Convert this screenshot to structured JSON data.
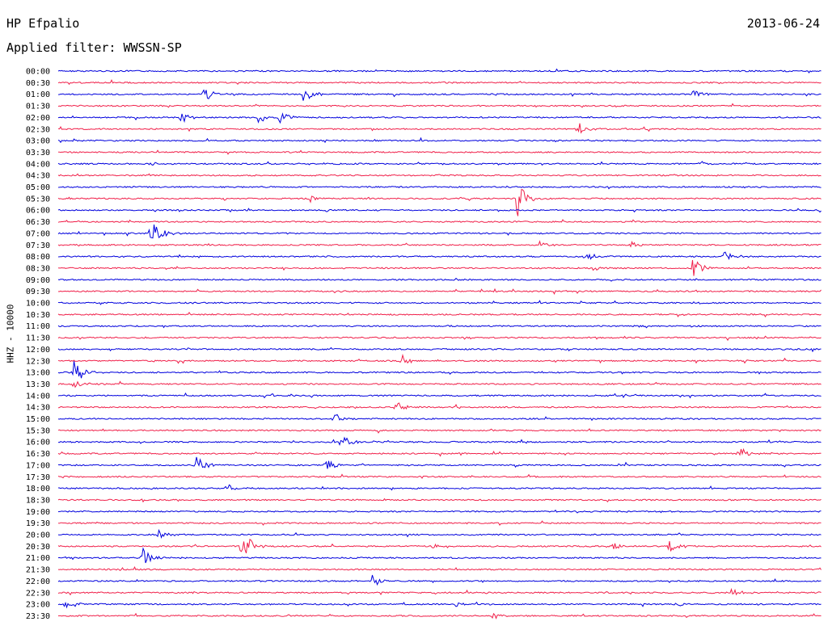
{
  "header": {
    "station": "HP Efpalio",
    "date": "2013-06-24",
    "filter_label": "Applied filter: WWSSN-SP",
    "channel_label": "HHZ - 10000"
  },
  "colors": {
    "blue_trace": "#0000dd",
    "red_trace": "#f0204a"
  },
  "helicorder": {
    "row_times": [
      "00:00",
      "00:30",
      "01:00",
      "01:30",
      "02:00",
      "02:30",
      "03:00",
      "03:30",
      "04:00",
      "04:30",
      "05:00",
      "05:30",
      "06:00",
      "06:30",
      "07:00",
      "07:30",
      "08:00",
      "08:30",
      "09:00",
      "09:30",
      "10:00",
      "10:30",
      "11:00",
      "11:30",
      "12:00",
      "12:30",
      "13:00",
      "13:30",
      "14:00",
      "14:30",
      "15:00",
      "15:30",
      "16:00",
      "16:30",
      "17:00",
      "17:30",
      "18:00",
      "18:30",
      "19:00",
      "19:30",
      "20:00",
      "20:30",
      "21:00",
      "21:30",
      "22:00",
      "22:30",
      "23:00",
      "23:30"
    ],
    "color_pattern": [
      "blue",
      "red"
    ],
    "events": [
      {
        "row": 2,
        "pos": 0.19,
        "amp": 12
      },
      {
        "row": 2,
        "pos": 0.32,
        "amp": 16
      },
      {
        "row": 2,
        "pos": 0.83,
        "amp": 6
      },
      {
        "row": 4,
        "pos": 0.16,
        "amp": 8
      },
      {
        "row": 4,
        "pos": 0.26,
        "amp": 12
      },
      {
        "row": 4,
        "pos": 0.29,
        "amp": 10
      },
      {
        "row": 5,
        "pos": 0.68,
        "amp": 10
      },
      {
        "row": 8,
        "pos": 0.12,
        "amp": 4
      },
      {
        "row": 8,
        "pos": 0.84,
        "amp": 4
      },
      {
        "row": 11,
        "pos": 0.33,
        "amp": 5
      },
      {
        "row": 11,
        "pos": 0.6,
        "amp": 30
      },
      {
        "row": 12,
        "pos": 0.35,
        "amp": 4
      },
      {
        "row": 14,
        "pos": 0.12,
        "amp": 26
      },
      {
        "row": 15,
        "pos": 0.63,
        "amp": 5
      },
      {
        "row": 15,
        "pos": 0.75,
        "amp": 5
      },
      {
        "row": 16,
        "pos": 0.87,
        "amp": 10
      },
      {
        "row": 16,
        "pos": 0.69,
        "amp": 8
      },
      {
        "row": 17,
        "pos": 0.83,
        "amp": 16
      },
      {
        "row": 17,
        "pos": 0.7,
        "amp": 5
      },
      {
        "row": 25,
        "pos": 0.45,
        "amp": 8
      },
      {
        "row": 26,
        "pos": 0.02,
        "amp": 24
      },
      {
        "row": 27,
        "pos": 0.02,
        "amp": 6
      },
      {
        "row": 29,
        "pos": 0.44,
        "amp": 10
      },
      {
        "row": 30,
        "pos": 0.36,
        "amp": 8
      },
      {
        "row": 32,
        "pos": 0.37,
        "amp": 10
      },
      {
        "row": 33,
        "pos": 0.89,
        "amp": 12
      },
      {
        "row": 34,
        "pos": 0.18,
        "amp": 14
      },
      {
        "row": 34,
        "pos": 0.35,
        "amp": 10
      },
      {
        "row": 36,
        "pos": 0.22,
        "amp": 8
      },
      {
        "row": 40,
        "pos": 0.13,
        "amp": 6
      },
      {
        "row": 41,
        "pos": 0.24,
        "amp": 28
      },
      {
        "row": 41,
        "pos": 0.49,
        "amp": 5
      },
      {
        "row": 41,
        "pos": 0.72,
        "amp": 8
      },
      {
        "row": 41,
        "pos": 0.8,
        "amp": 10
      },
      {
        "row": 42,
        "pos": 0.11,
        "amp": 14
      },
      {
        "row": 44,
        "pos": 0.41,
        "amp": 10
      },
      {
        "row": 45,
        "pos": 0.88,
        "amp": 7
      },
      {
        "row": 46,
        "pos": 0.01,
        "amp": 8
      },
      {
        "row": 46,
        "pos": 0.52,
        "amp": 4
      },
      {
        "row": 46,
        "pos": 0.81,
        "amp": 4
      },
      {
        "row": 47,
        "pos": 0.57,
        "amp": 8
      }
    ]
  }
}
